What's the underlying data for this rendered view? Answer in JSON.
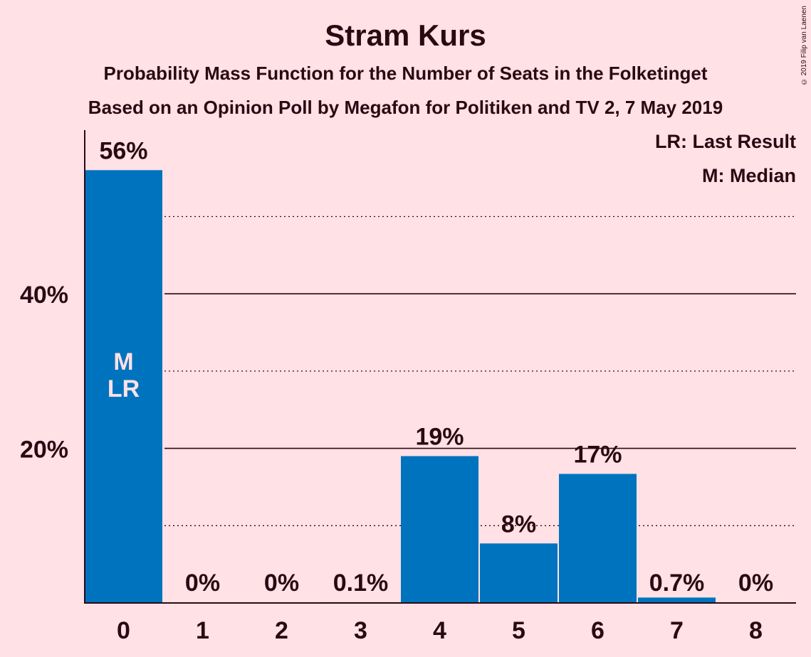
{
  "chart_data": {
    "type": "bar",
    "title": "Stram Kurs",
    "subtitle": "Probability Mass Function for the Number of Seats in the Folketinget",
    "subtitle2": "Based on an Opinion Poll by Megafon for Politiken and TV 2, 7 May 2019",
    "copyright": "© 2019 Filip van Laenen",
    "categories": [
      "0",
      "1",
      "2",
      "3",
      "4",
      "5",
      "6",
      "7",
      "8"
    ],
    "values": [
      56,
      0,
      0,
      0.1,
      19,
      7.7,
      16.7,
      0.7,
      0
    ],
    "data_labels": [
      "56%",
      "0%",
      "0%",
      "0.1%",
      "19%",
      "8%",
      "17%",
      "0.7%",
      "0%"
    ],
    "ylim": [
      0,
      61
    ],
    "y_ticks": [
      20,
      40
    ],
    "y_tick_labels": [
      "20%",
      "40%"
    ],
    "y_minor_gridlines": [
      10,
      30,
      50
    ],
    "bar_markers": [
      {
        "category": "0",
        "lines": [
          "M",
          "LR"
        ]
      }
    ],
    "legend": [
      "LR: Last Result",
      "M: Median"
    ],
    "legend_position": "top-right",
    "bar_color": "#0073BE",
    "background_color": "#FFE1E6"
  }
}
